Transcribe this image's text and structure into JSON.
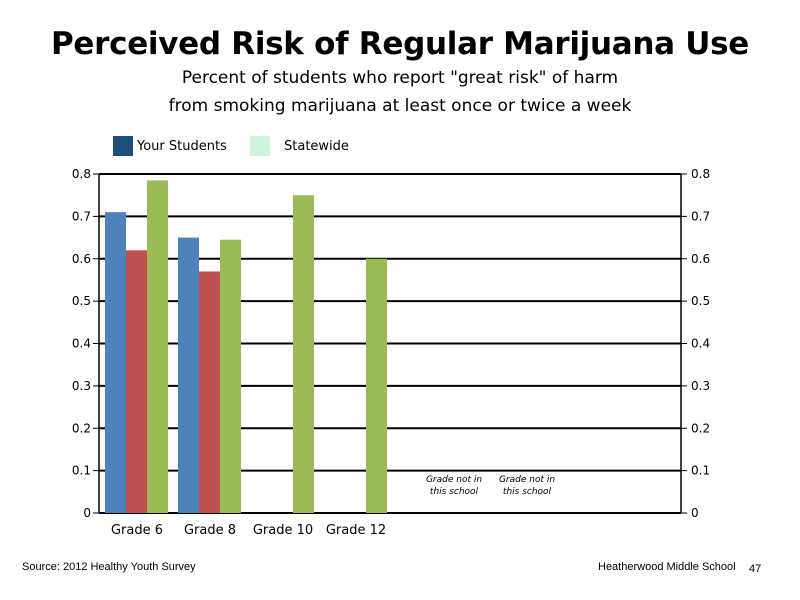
{
  "page": {
    "source": "Source: 2012 Healthy Youth Survey",
    "school": "Heatherwood Middle  School",
    "page_number": "47"
  },
  "legend": [
    {
      "label": "Your Students",
      "color": "#1F4E79"
    },
    {
      "label": "Statewide",
      "color": "#CCF5DB"
    }
  ],
  "chart_data": {
    "type": "bar",
    "title": "Perceived Risk of Regular Marijuana Use",
    "subtitle": [
      "Percent of students who report \"great risk\" of harm",
      "from smoking marijuana at least once or twice a week"
    ],
    "categories": [
      "Grade 6",
      "Grade 8",
      "Grade 10",
      "Grade 12",
      "",
      ""
    ],
    "series": [
      {
        "values": [
          0.71,
          0.65,
          null,
          null,
          null,
          null
        ],
        "color": "#4F81BD"
      },
      {
        "values": [
          0.62,
          0.57,
          null,
          null,
          null,
          null
        ],
        "color": "#C0504D"
      },
      {
        "values": [
          0.785,
          0.645,
          0.75,
          0.6,
          null,
          null
        ],
        "color": "#9BBB59"
      }
    ],
    "ylim": [
      0,
      0.8
    ],
    "yticks": [
      "0",
      "0.1",
      "0.2",
      "0.3",
      "0.4",
      "0.5",
      "0.6",
      "0.7",
      "0.8"
    ],
    "grid": true,
    "annotations": [
      {
        "category_index": 4,
        "lines": [
          "Grade not in",
          "this school"
        ]
      },
      {
        "category_index": 5,
        "lines": [
          "Grade not in",
          "this school"
        ]
      }
    ]
  }
}
